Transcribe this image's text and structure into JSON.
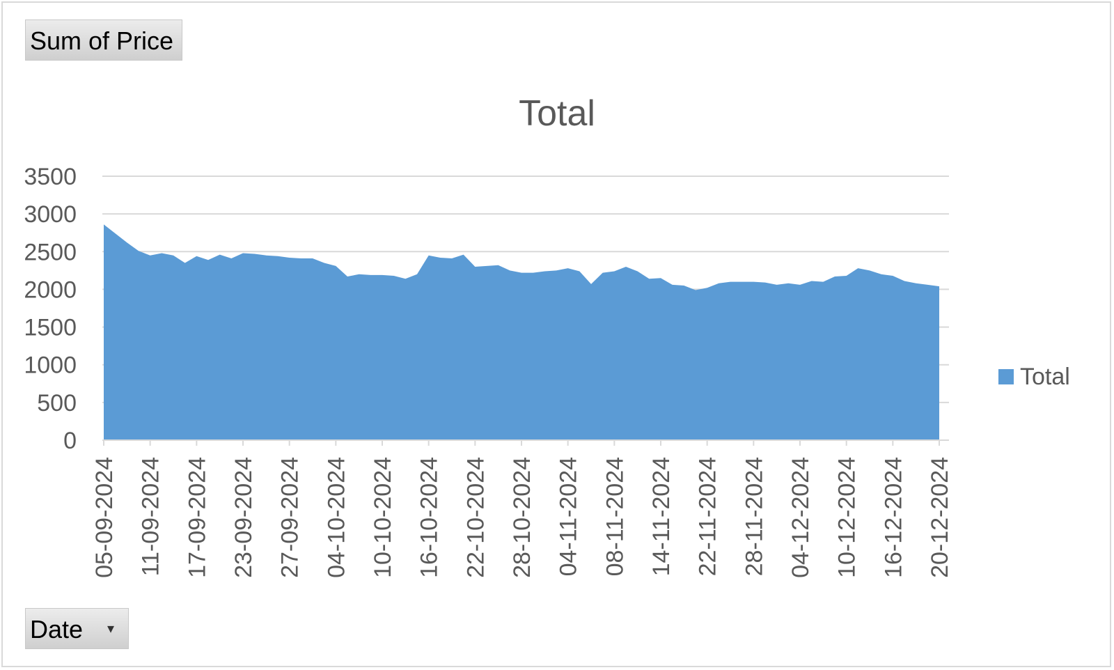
{
  "field_buttons": {
    "values_label": "Sum of Price",
    "axis_label": "Date",
    "dropdown_icon": "dropdown-arrow-icon"
  },
  "colors": {
    "series": "#5b9bd5",
    "grid": "#d9d9d9",
    "text": "#595959"
  },
  "chart_data": {
    "type": "area",
    "title": "Total",
    "xlabel": "",
    "ylabel": "",
    "ylim": [
      0,
      3500
    ],
    "yticks": [
      0,
      500,
      1000,
      1500,
      2000,
      2500,
      3000,
      3500
    ],
    "grid": true,
    "legend": "right",
    "x_tick_labels": [
      "05-09-2024",
      "11-09-2024",
      "17-09-2024",
      "23-09-2024",
      "27-09-2024",
      "04-10-2024",
      "10-10-2024",
      "16-10-2024",
      "22-10-2024",
      "28-10-2024",
      "04-11-2024",
      "08-11-2024",
      "14-11-2024",
      "22-11-2024",
      "28-11-2024",
      "04-12-2024",
      "10-12-2024",
      "16-12-2024",
      "20-12-2024"
    ],
    "series": [
      {
        "name": "Total",
        "values": [
          2860,
          2740,
          2620,
          2510,
          2450,
          2480,
          2450,
          2350,
          2440,
          2390,
          2460,
          2410,
          2480,
          2470,
          2450,
          2440,
          2420,
          2410,
          2410,
          2350,
          2310,
          2170,
          2200,
          2190,
          2190,
          2180,
          2140,
          2200,
          2450,
          2420,
          2410,
          2460,
          2300,
          2310,
          2320,
          2250,
          2220,
          2220,
          2240,
          2250,
          2280,
          2240,
          2070,
          2220,
          2240,
          2300,
          2240,
          2140,
          2150,
          2060,
          2050,
          1990,
          2020,
          2080,
          2100,
          2100,
          2100,
          2090,
          2060,
          2080,
          2060,
          2110,
          2100,
          2170,
          2180,
          2280,
          2250,
          2200,
          2180,
          2110,
          2080,
          2060,
          2040
        ]
      }
    ]
  }
}
